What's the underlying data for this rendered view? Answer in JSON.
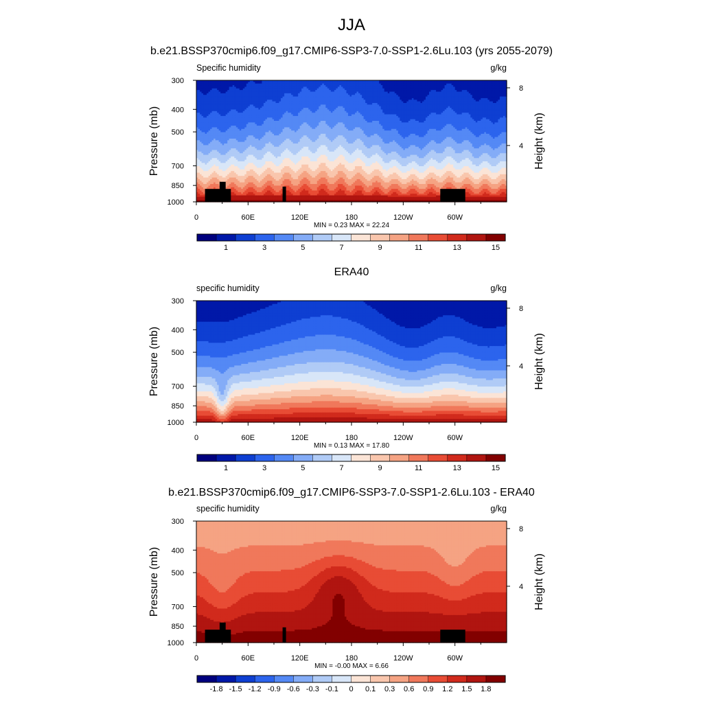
{
  "figure": {
    "title": "JJA",
    "subtitle": "b.e21.BSSP370cmip6.f09_g17.CMIP6-SSP3-7.0-SSP1-2.6Lu.103 (yrs 2055-2079)"
  },
  "chart_data": [
    {
      "type": "heatmap",
      "title": "",
      "left_label": "Specific humidity",
      "right_label": "g/kg",
      "ylabel": "Pressure (mb)",
      "ylabel_right": "Height (km)",
      "x_ticks": [
        "0",
        "60E",
        "120E",
        "180",
        "120W",
        "60W"
      ],
      "x_tick_values": [
        0,
        60,
        120,
        180,
        240,
        300
      ],
      "xlim": [
        0,
        360
      ],
      "y_ticks": [
        "300",
        "400",
        "500",
        "700",
        "850",
        "1000"
      ],
      "y_tick_values": [
        300,
        400,
        500,
        700,
        850,
        1000
      ],
      "ylim": [
        1000,
        300
      ],
      "y_scale": "log",
      "height_ticks": [
        "8",
        "4"
      ],
      "height_tick_values": [
        8,
        4
      ],
      "stats_label": "MIN =   0.23  MAX =  22.24",
      "min": 0.23,
      "max": 22.24,
      "colorbar_levels": [
        0,
        1,
        2,
        3,
        4,
        5,
        6,
        7,
        8,
        9,
        10,
        11,
        12,
        13,
        14,
        15
      ],
      "colorbar_labels": [
        "1",
        "3",
        "5",
        "7",
        "9",
        "11",
        "13",
        "15"
      ],
      "colorbar_label_positions": [
        1,
        3,
        5,
        7,
        9,
        11,
        13,
        15
      ],
      "terrain_mask": true
    },
    {
      "type": "heatmap",
      "title": "ERA40",
      "left_label": "specific humidity",
      "right_label": "g/kg",
      "ylabel": "Pressure (mb)",
      "ylabel_right": "Height (km)",
      "x_ticks": [
        "0",
        "60E",
        "120E",
        "180",
        "120W",
        "60W"
      ],
      "x_tick_values": [
        0,
        60,
        120,
        180,
        240,
        300
      ],
      "xlim": [
        0,
        360
      ],
      "y_ticks": [
        "300",
        "400",
        "500",
        "700",
        "850",
        "1000"
      ],
      "y_tick_values": [
        300,
        400,
        500,
        700,
        850,
        1000
      ],
      "ylim": [
        1000,
        300
      ],
      "y_scale": "log",
      "height_ticks": [
        "8",
        "4"
      ],
      "height_tick_values": [
        8,
        4
      ],
      "stats_label": "MIN =   0.13  MAX =  17.80",
      "min": 0.13,
      "max": 17.8,
      "colorbar_levels": [
        0,
        1,
        2,
        3,
        4,
        5,
        6,
        7,
        8,
        9,
        10,
        11,
        12,
        13,
        14,
        15
      ],
      "colorbar_labels": [
        "1",
        "3",
        "5",
        "7",
        "9",
        "11",
        "13",
        "15"
      ],
      "colorbar_label_positions": [
        1,
        3,
        5,
        7,
        9,
        11,
        13,
        15
      ],
      "terrain_mask": false
    },
    {
      "type": "heatmap",
      "title": "b.e21.BSSP370cmip6.f09_g17.CMIP6-SSP3-7.0-SSP1-2.6Lu.103 - ERA40",
      "left_label": "specific humidity",
      "right_label": "g/kg",
      "ylabel": "Pressure (mb)",
      "ylabel_right": "Height (km)",
      "x_ticks": [
        "0",
        "60E",
        "120E",
        "180",
        "120W",
        "60W"
      ],
      "x_tick_values": [
        0,
        60,
        120,
        180,
        240,
        300
      ],
      "xlim": [
        0,
        360
      ],
      "y_ticks": [
        "300",
        "400",
        "500",
        "700",
        "850",
        "1000"
      ],
      "y_tick_values": [
        300,
        400,
        500,
        700,
        850,
        1000
      ],
      "ylim": [
        1000,
        300
      ],
      "y_scale": "log",
      "height_ticks": [
        "8",
        "4"
      ],
      "height_tick_values": [
        8,
        4
      ],
      "stats_label": "MIN =  -0.00  MAX =   6.66",
      "min": -0.0,
      "max": 6.66,
      "colorbar_levels": [
        -1.8,
        -1.5,
        -1.2,
        -0.9,
        -0.6,
        -0.3,
        -0.1,
        0,
        0.1,
        0.3,
        0.6,
        0.9,
        1.2,
        1.5,
        1.8
      ],
      "colorbar_labels": [
        "-1.8",
        "-1.5",
        "-1.2",
        "-0.9",
        "-0.6",
        "-0.3",
        "-0.1",
        "0",
        "0.1",
        "0.3",
        "0.6",
        "0.9",
        "1.2",
        "1.5",
        "1.8"
      ],
      "colorbar_label_positions": [
        -1.8,
        -1.5,
        -1.2,
        -0.9,
        -0.6,
        -0.3,
        -0.1,
        0,
        0.1,
        0.3,
        0.6,
        0.9,
        1.2,
        1.5,
        1.8
      ],
      "terrain_mask": true
    }
  ],
  "colors": {
    "palette": [
      "#00007e",
      "#0018a8",
      "#0e3fd2",
      "#2c64ed",
      "#5489f5",
      "#84acf7",
      "#b0cbf6",
      "#d8e6f8",
      "#fbe4d6",
      "#f9c6ad",
      "#f5a383",
      "#f0785b",
      "#e84c35",
      "#d12a1c",
      "#b01510",
      "#820000"
    ],
    "terrain": "#000000"
  }
}
